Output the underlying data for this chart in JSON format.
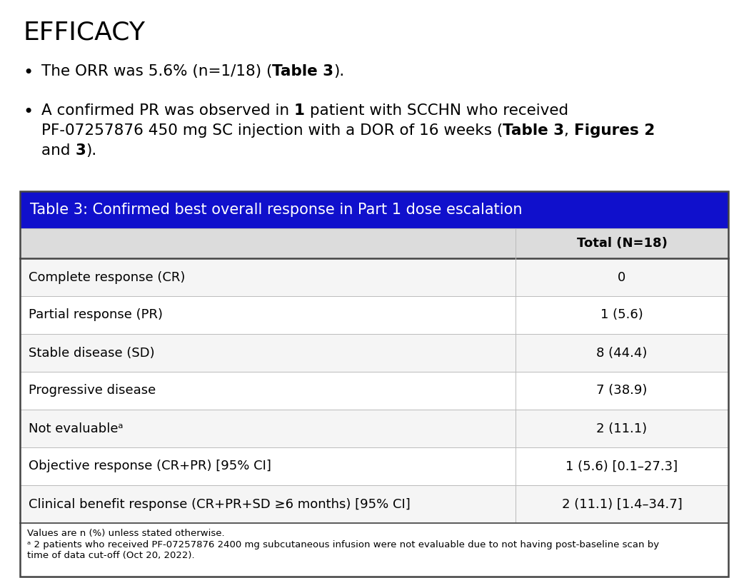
{
  "title": "EFFICACY",
  "table_title": "Table 3: Confirmed best overall response in Part 1 dose escalation",
  "table_header": "Total (N=18)",
  "table_rows": [
    [
      "Complete response (CR)",
      "0"
    ],
    [
      "Partial response (PR)",
      "1 (5.6)"
    ],
    [
      "Stable disease (SD)",
      "8 (44.4)"
    ],
    [
      "Progressive disease",
      "7 (38.9)"
    ],
    [
      "Not evaluableᵃ",
      "2 (11.1)"
    ],
    [
      "Objective response (CR+PR) [95% CI]",
      "1 (5.6) [0.1–27.3]"
    ],
    [
      "Clinical benefit response (CR+PR+SD ≥6 months) [95% CI]",
      "2 (11.1) [1.4–34.7]"
    ]
  ],
  "footnote1": "Values are n (%) unless stated otherwise.",
  "footnote2": "ᵃ 2 patients who received PF-07257876 2400 mg subcutaneous infusion were not evaluable due to not having post-baseline scan by\ntime of data cut-off (Oct 20, 2022).",
  "table_header_bg": "#1010CC",
  "table_header_text": "#FFFFFF",
  "table_subheader_bg": "#DCDCDC",
  "row_colors": [
    "#F5F5F5",
    "#FFFFFF"
  ],
  "border_color": "#444444",
  "background_color": "#FFFFFF",
  "title_fontsize": 26,
  "bullet_fontsize": 15.5,
  "table_title_fontsize": 15,
  "table_content_fontsize": 13,
  "footnote_fontsize": 9.5
}
